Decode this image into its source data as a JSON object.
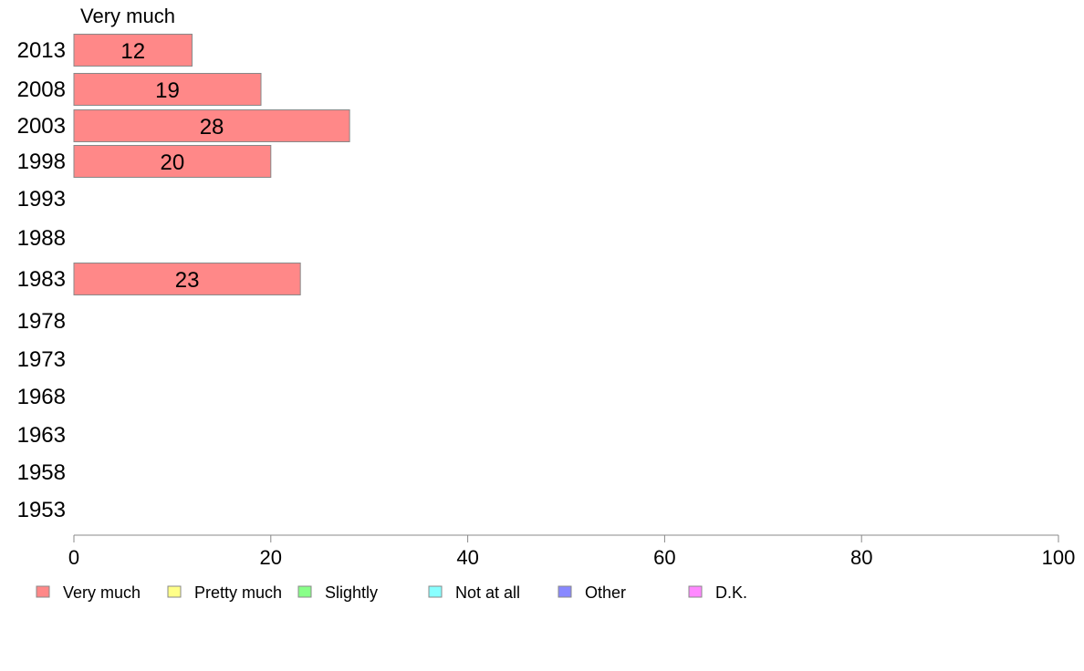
{
  "chart_data": {
    "type": "bar",
    "orientation": "horizontal",
    "series_header": "Very much",
    "categories": [
      "2013",
      "2008",
      "2003",
      "1998",
      "1993",
      "1988",
      "1983",
      "1978",
      "1973",
      "1968",
      "1963",
      "1958",
      "1953"
    ],
    "series": [
      {
        "name": "Very much",
        "color": "#ff8888",
        "values": [
          12,
          19,
          28,
          20,
          null,
          null,
          23,
          null,
          null,
          null,
          null,
          null,
          null
        ]
      }
    ],
    "xlim": [
      0,
      100
    ],
    "xticks": [
      0,
      20,
      40,
      60,
      80,
      100
    ],
    "legend_position": "bottom",
    "legend": [
      {
        "label": "Very much",
        "color": "#ff8888"
      },
      {
        "label": "Pretty much",
        "color": "#ffff88"
      },
      {
        "label": "Slightly",
        "color": "#88ff88"
      },
      {
        "label": "Not at all",
        "color": "#88ffff"
      },
      {
        "label": "Other",
        "color": "#8888ff"
      },
      {
        "label": "D.K.",
        "color": "#ff88ff"
      }
    ]
  }
}
